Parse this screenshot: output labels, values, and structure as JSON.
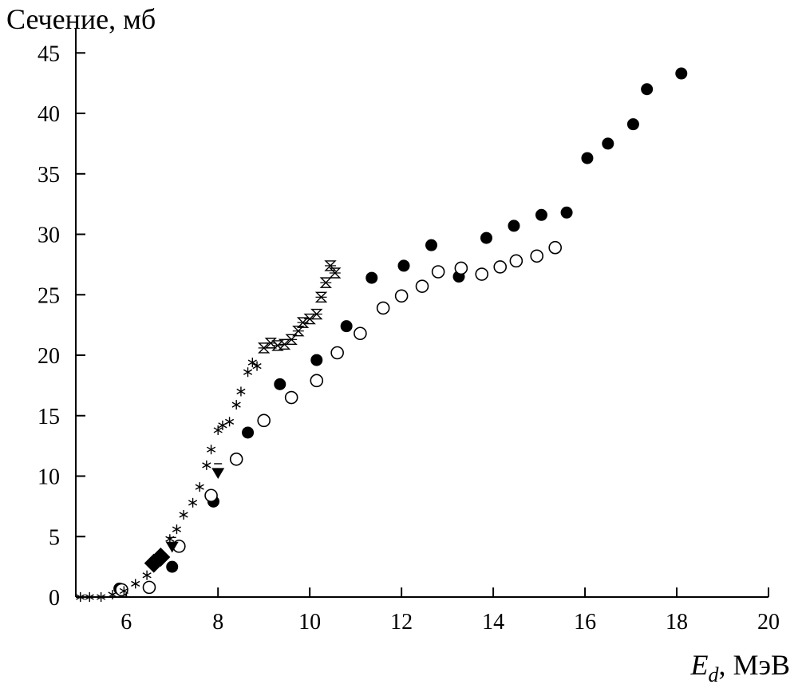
{
  "chart_data": {
    "type": "scatter",
    "title": "",
    "ylabel": "Сечение, мб",
    "xlabel": {
      "symbol": "E",
      "subscript": "d",
      "unit": ", МэВ"
    },
    "xlim": [
      4.9,
      20
    ],
    "ylim": [
      0,
      47
    ],
    "xticks": [
      6,
      8,
      10,
      12,
      14,
      16,
      18,
      20
    ],
    "yticks": [
      0,
      5,
      10,
      15,
      20,
      25,
      30,
      35,
      40,
      45
    ],
    "grid": false,
    "legend": "none",
    "series": [
      {
        "marker": "filled-circle",
        "color": "#000000",
        "x": [
          5.85,
          7.0,
          7.9,
          8.65,
          9.35,
          10.15,
          10.8,
          11.35,
          12.05,
          12.65,
          13.25,
          13.85,
          14.45,
          15.05,
          15.6,
          16.05,
          16.5,
          17.05,
          17.35,
          18.1
        ],
        "y": [
          0.7,
          2.5,
          7.9,
          13.6,
          17.6,
          19.6,
          22.4,
          26.4,
          27.4,
          29.1,
          26.5,
          29.7,
          30.7,
          31.6,
          31.8,
          36.3,
          37.5,
          39.1,
          42.0,
          43.3
        ]
      },
      {
        "marker": "open-circle",
        "color": "#000000",
        "x": [
          5.9,
          6.5,
          7.15,
          7.85,
          8.4,
          9.0,
          9.6,
          10.15,
          10.6,
          11.1,
          11.6,
          12.0,
          12.45,
          12.8,
          13.3,
          13.75,
          14.15,
          14.5,
          14.95,
          15.35
        ],
        "y": [
          0.6,
          0.8,
          4.2,
          8.4,
          11.4,
          14.6,
          16.5,
          17.9,
          20.2,
          21.8,
          23.9,
          24.9,
          25.7,
          26.9,
          27.2,
          26.7,
          27.3,
          27.8,
          28.2,
          28.9
        ]
      },
      {
        "marker": "asterisk",
        "color": "#000000",
        "x": [
          5.0,
          5.2,
          5.45,
          5.7,
          5.95,
          6.2,
          6.45,
          6.75,
          6.95,
          7.1,
          7.25,
          7.45,
          7.6,
          7.75,
          7.85,
          8.0,
          8.1,
          8.25,
          8.4,
          8.5,
          8.65,
          8.75,
          8.85
        ],
        "y": [
          0.0,
          0.0,
          0.0,
          0.2,
          0.5,
          1.1,
          1.8,
          3.2,
          4.8,
          5.6,
          6.8,
          7.8,
          9.1,
          10.9,
          12.2,
          13.8,
          14.2,
          14.5,
          15.9,
          17.0,
          18.6,
          19.4,
          19.1
        ]
      },
      {
        "marker": "hourglass",
        "color": "#000000",
        "x": [
          9.0,
          9.15,
          9.3,
          9.45,
          9.6,
          9.75,
          9.85,
          10.0,
          10.15,
          10.25,
          10.35,
          10.45,
          10.55
        ],
        "y": [
          20.6,
          21.0,
          20.8,
          20.9,
          21.3,
          22.0,
          22.7,
          23.0,
          23.4,
          24.8,
          26.0,
          27.4,
          26.8
        ]
      },
      {
        "marker": "filled-triangle-down",
        "color": "#000000",
        "x": [
          7.0,
          8.0
        ],
        "y": [
          4.2,
          10.3
        ]
      },
      {
        "marker": "filled-diamond",
        "color": "#000000",
        "x": [
          6.6,
          6.75
        ],
        "y": [
          2.8,
          3.3
        ]
      }
    ]
  }
}
